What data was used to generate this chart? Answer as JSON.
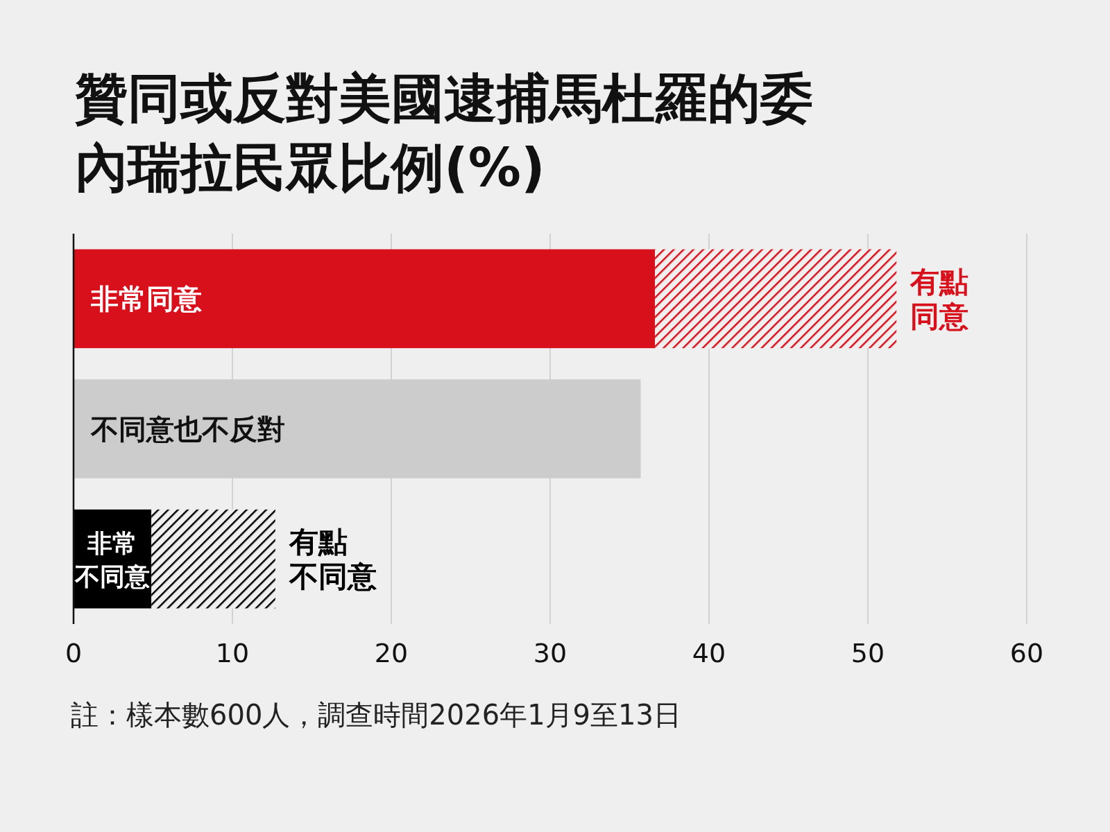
{
  "chart_data": {
    "type": "bar",
    "orientation": "horizontal",
    "stacked": true,
    "title": "贊同或反對美國逮捕馬杜羅的委內瑞拉民眾比例(%)",
    "categories": [
      "非常同意",
      "不同意也不反對",
      "非常不同意"
    ],
    "series": [
      {
        "values": [
          36.6,
          35.7,
          4.9
        ],
        "colors": [
          "#d7101b",
          "#cccccc",
          "#000000"
        ]
      },
      {
        "values": [
          15.2,
          null,
          7.8
        ],
        "colors": [
          "#d7101b",
          null,
          "#000000"
        ]
      }
    ],
    "xlim": [
      0,
      60
    ],
    "xticks": [
      0,
      10,
      20,
      30,
      40,
      50,
      60
    ],
    "grid": "x",
    "annotations": [
      {
        "text": "有點同意",
        "x": 51.8,
        "y": "非常同意"
      },
      {
        "text": "有點不同意",
        "x": 12.7,
        "y": "非常不同意"
      },
      "註：樣本數600人，調查時間2026年1月9至13日"
    ]
  }
}
